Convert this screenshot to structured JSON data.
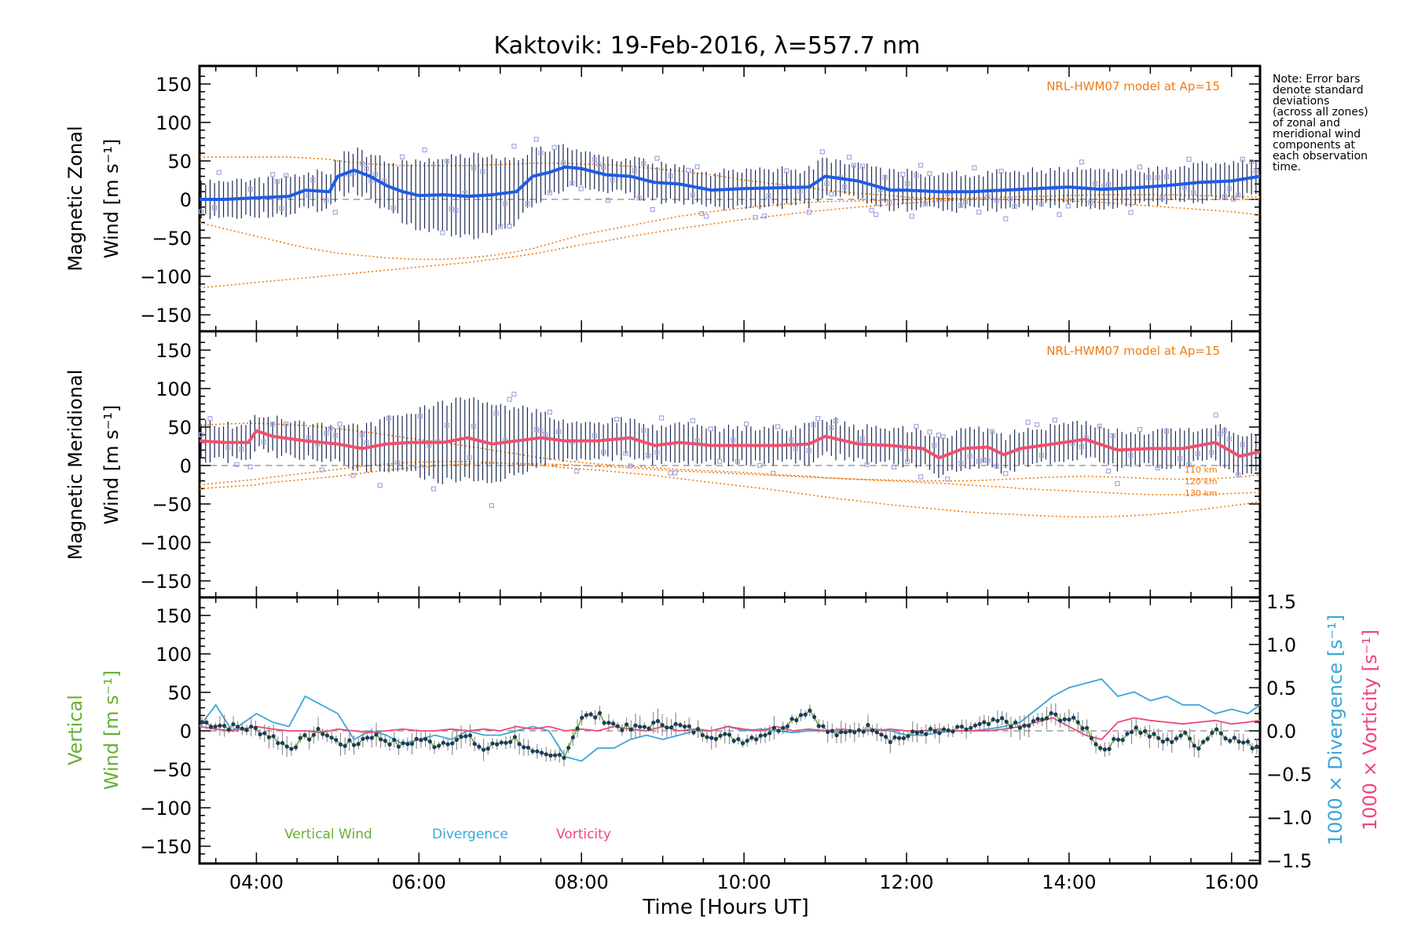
{
  "title": "Kaktovik: 19-Feb-2016, λ=557.7 nm",
  "xlabel": "Time [Hours UT]",
  "note": [
    "Note: Error bars",
    "denote standard",
    "deviations",
    "(across all zones)",
    "of zonal and",
    "meridional wind",
    "components at",
    "each observation",
    "time."
  ],
  "model_label": "NRL-HWM07 model at Ap=15",
  "alt_labels": [
    "110 km",
    "120 km",
    "130 km"
  ],
  "x_ticks": [
    "04:00",
    "06:00",
    "08:00",
    "10:00",
    "12:00",
    "14:00",
    "16:00"
  ],
  "y_ticks_wind": [
    "150",
    "100",
    "50",
    "0",
    "−50",
    "−100",
    "−150"
  ],
  "y_ticks_right": [
    "1.5",
    "1.0",
    "0.5",
    "0.0",
    "−0.5",
    "−1.0",
    "−1.5"
  ],
  "panels": {
    "zonal": {
      "ylabel1": "Magnetic Zonal",
      "ylabel2": "Wind [m s⁻¹]"
    },
    "meridional": {
      "ylabel1": "Magnetic Meridional",
      "ylabel2": "Wind [m s⁻¹]"
    },
    "vertical": {
      "ylabel1": "Vertical",
      "ylabel2": "Wind [m s⁻¹]",
      "right1": "1000 × Divergence [s⁻¹]",
      "right2": "1000 × Vorticity [s⁻¹]"
    }
  },
  "legend": {
    "vertical": "Vertical Wind",
    "divergence": "Divergence",
    "vorticity": "Vorticity"
  },
  "colors": {
    "zonal": "#1f5be6",
    "zonal_light": "#3ea0ea",
    "meridional": "#f0506e",
    "vertical": "#66b032",
    "divergence": "#3aa6d8",
    "vorticity": "#f0467a",
    "model": "#f07c12",
    "samples": "#a6a4e0",
    "errorbar": "#1c2a52"
  },
  "chart_data": [
    {
      "type": "line",
      "title": "Kaktovik: 19-Feb-2016, λ=557.7 nm",
      "xlabel": "Time [Hours UT]",
      "ylabel": "Magnetic Zonal Wind [m s⁻¹]",
      "xlim": [
        3.3,
        16.35
      ],
      "ylim": [
        -165,
        165
      ],
      "x": [
        3.3,
        3.6,
        4.0,
        4.4,
        4.6,
        4.9,
        5.0,
        5.2,
        5.4,
        5.6,
        5.8,
        6.0,
        6.3,
        6.6,
        6.9,
        7.2,
        7.4,
        7.6,
        7.8,
        8.0,
        8.3,
        8.6,
        8.9,
        9.2,
        9.6,
        10.0,
        10.4,
        10.8,
        11.0,
        11.4,
        11.8,
        12.0,
        12.4,
        12.8,
        13.2,
        13.6,
        14.0,
        14.4,
        14.8,
        15.2,
        15.6,
        16.0,
        16.35
      ],
      "series": [
        {
          "values": [
            0,
            0,
            2,
            4,
            12,
            10,
            30,
            38,
            30,
            18,
            10,
            5,
            6,
            4,
            6,
            10,
            30,
            35,
            42,
            40,
            32,
            30,
            22,
            20,
            12,
            14,
            15,
            16,
            30,
            24,
            12,
            12,
            10,
            10,
            12,
            14,
            16,
            13,
            15,
            18,
            22,
            24,
            30
          ]
        }
      ],
      "model": {
        "name": "NRL-HWM07 model at Ap=15",
        "curves": [
          {
            "label": "110 km",
            "values": [
              55,
              55,
              55,
              55,
              54,
              52,
              50,
              48,
              46,
              45,
              44,
              44,
              44,
              44,
              45,
              46,
              47,
              47,
              47,
              46,
              45,
              43,
              40,
              37,
              32,
              25,
              20,
              15,
              12,
              8,
              5,
              3,
              1,
              0,
              0,
              0,
              0,
              0,
              0,
              0,
              0,
              0,
              0
            ]
          },
          {
            "label": "120 km",
            "values": [
              -30,
              -38,
              -48,
              -58,
              -63,
              -68,
              -70,
              -72,
              -74,
              -76,
              -77,
              -78,
              -78,
              -76,
              -73,
              -68,
              -64,
              -58,
              -52,
              -46,
              -40,
              -34,
              -28,
              -22,
              -16,
              -11,
              -7,
              -4,
              -3,
              -2,
              -1,
              0,
              1,
              2,
              3,
              4,
              5,
              6,
              6,
              6,
              5,
              4,
              3
            ]
          },
          {
            "label": "130 km",
            "values": [
              -115,
              -112,
              -108,
              -104,
              -102,
              -99,
              -98,
              -96,
              -94,
              -92,
              -90,
              -88,
              -85,
              -82,
              -78,
              -74,
              -71,
              -67,
              -63,
              -59,
              -54,
              -48,
              -43,
              -38,
              -32,
              -26,
              -21,
              -16,
              -14,
              -10,
              -7,
              -5,
              -2,
              0,
              0,
              0,
              -2,
              -4,
              -7,
              -10,
              -13,
              -16,
              -20
            ]
          }
        ]
      }
    },
    {
      "type": "line",
      "ylabel": "Magnetic Meridional Wind [m s⁻¹]",
      "xlim": [
        3.3,
        16.35
      ],
      "ylim": [
        -165,
        165
      ],
      "x": [
        3.3,
        3.6,
        3.9,
        4.0,
        4.2,
        4.6,
        5.0,
        5.3,
        5.6,
        5.9,
        6.3,
        6.6,
        6.9,
        7.2,
        7.5,
        7.8,
        8.2,
        8.6,
        8.9,
        9.2,
        9.6,
        10.0,
        10.4,
        10.8,
        11.0,
        11.4,
        11.8,
        12.2,
        12.4,
        12.7,
        13.0,
        13.2,
        13.4,
        13.8,
        14.2,
        14.6,
        15.0,
        15.4,
        15.8,
        16.1,
        16.35
      ],
      "series": [
        {
          "values": [
            32,
            30,
            30,
            45,
            38,
            32,
            28,
            22,
            28,
            30,
            30,
            36,
            28,
            32,
            36,
            32,
            32,
            36,
            26,
            30,
            26,
            26,
            26,
            28,
            38,
            28,
            26,
            22,
            10,
            22,
            24,
            14,
            22,
            28,
            34,
            20,
            22,
            22,
            30,
            12,
            18
          ]
        }
      ],
      "model": {
        "name": "NRL-HWM07 model at Ap=15",
        "curves": [
          {
            "label": "110 km",
            "values": [
              52,
              54,
              55,
              55,
              54,
              52,
              48,
              44,
              40,
              35,
              30,
              25,
              20,
              15,
              10,
              6,
              2,
              -1,
              -3,
              -5,
              -7,
              -9,
              -12,
              -14,
              -16,
              -18,
              -19,
              -20,
              -20,
              -20,
              -19,
              -18,
              -17,
              -15,
              -14,
              -15,
              -17,
              -18,
              -17,
              -15,
              -12
            ]
          },
          {
            "label": "120 km",
            "values": [
              -25,
              -22,
              -19,
              -18,
              -15,
              -10,
              -5,
              -1,
              2,
              4,
              5,
              5,
              4,
              2,
              0,
              -3,
              -6,
              -10,
              -13,
              -17,
              -22,
              -27,
              -32,
              -38,
              -41,
              -46,
              -51,
              -55,
              -57,
              -60,
              -62,
              -63,
              -64,
              -66,
              -67,
              -66,
              -64,
              -60,
              -55,
              -51,
              -47
            ]
          },
          {
            "label": "130 km",
            "values": [
              -30,
              -28,
              -26,
              -25,
              -22,
              -18,
              -14,
              -10,
              -6,
              -3,
              0,
              2,
              3,
              3,
              2,
              1,
              -1,
              -3,
              -5,
              -7,
              -9,
              -11,
              -13,
              -15,
              -16,
              -18,
              -20,
              -22,
              -23,
              -25,
              -27,
              -28,
              -30,
              -32,
              -34,
              -36,
              -38,
              -38,
              -37,
              -36,
              -35
            ]
          }
        ]
      }
    },
    {
      "type": "line",
      "ylabel": "Vertical Wind [m s⁻¹]",
      "y2label": [
        "1000 × Divergence [s⁻¹]",
        "1000 × Vorticity [s⁻¹]"
      ],
      "xlim": [
        3.3,
        16.35
      ],
      "ylim": [
        -165,
        165
      ],
      "y2lim": [
        -1.6,
        1.6
      ],
      "x": [
        3.3,
        3.5,
        3.7,
        4.0,
        4.2,
        4.4,
        4.6,
        4.8,
        5.0,
        5.2,
        5.4,
        5.6,
        5.8,
        6.0,
        6.2,
        6.4,
        6.6,
        6.8,
        7.0,
        7.2,
        7.4,
        7.6,
        7.8,
        8.0,
        8.2,
        8.4,
        8.6,
        8.8,
        9.0,
        9.2,
        9.4,
        9.6,
        9.8,
        10.0,
        10.2,
        10.4,
        10.6,
        10.8,
        11.0,
        11.2,
        11.4,
        11.6,
        11.8,
        12.0,
        12.2,
        12.4,
        12.6,
        12.8,
        13.0,
        13.2,
        13.4,
        13.6,
        13.8,
        14.0,
        14.2,
        14.4,
        14.6,
        14.8,
        15.0,
        15.2,
        15.4,
        15.6,
        15.8,
        16.0,
        16.2,
        16.35
      ],
      "series": [
        {
          "name": "Vertical Wind",
          "axis": "left",
          "values": [
            12,
            8,
            5,
            2,
            -8,
            -22,
            -10,
            0,
            -15,
            -18,
            -5,
            -12,
            -20,
            -10,
            -18,
            -12,
            -8,
            -25,
            -15,
            -10,
            -30,
            -35,
            -30,
            18,
            20,
            8,
            2,
            6,
            10,
            6,
            0,
            -5,
            -8,
            -12,
            -5,
            2,
            15,
            28,
            0,
            -6,
            2,
            5,
            -10,
            -8,
            0,
            -3,
            0,
            4,
            8,
            14,
            3,
            12,
            20,
            15,
            5,
            -25,
            -12,
            4,
            -6,
            -15,
            -4,
            -20,
            3,
            -10,
            -18,
            -20
          ]
        },
        {
          "name": "Divergence",
          "axis": "right",
          "values": [
            0.05,
            0.3,
            0.0,
            0.2,
            0.1,
            0.05,
            0.4,
            0.3,
            0.2,
            -0.1,
            0.0,
            -0.05,
            -0.15,
            -0.1,
            -0.05,
            -0.1,
            0.0,
            -0.05,
            -0.05,
            0.0,
            0.05,
            0.0,
            -0.3,
            -0.35,
            -0.2,
            -0.2,
            -0.1,
            -0.05,
            -0.1,
            -0.05,
            0.0,
            0.0,
            0.05,
            0.0,
            0.02,
            0.0,
            -0.02,
            0.0,
            0.0,
            -0.02,
            0.0,
            0.02,
            0.0,
            -0.05,
            -0.05,
            -0.02,
            0.0,
            0.0,
            0.02,
            0.05,
            0.1,
            0.25,
            0.4,
            0.5,
            0.55,
            0.6,
            0.4,
            0.45,
            0.35,
            0.4,
            0.3,
            0.3,
            0.2,
            0.25,
            0.2,
            0.3
          ]
        },
        {
          "name": "Vorticity",
          "axis": "right",
          "values": [
            0.05,
            0.02,
            0.0,
            0.05,
            0.02,
            0.0,
            0.0,
            -0.02,
            0.02,
            0.0,
            -0.02,
            0.0,
            0.02,
            0.0,
            0.0,
            0.02,
            0.0,
            0.02,
            0.0,
            0.05,
            0.02,
            0.05,
            0.0,
            0.02,
            0.0,
            0.05,
            0.02,
            0.0,
            0.05,
            0.0,
            0.02,
            0.0,
            0.05,
            0.02,
            0.0,
            0.05,
            0.0,
            0.02,
            0.0,
            0.02,
            0.0,
            0.0,
            0.02,
            0.0,
            0.0,
            0.02,
            0.0,
            0.0,
            0.0,
            0.02,
            0.05,
            0.1,
            0.15,
            0.05,
            -0.05,
            -0.1,
            0.1,
            0.15,
            0.12,
            0.1,
            0.08,
            0.1,
            0.12,
            0.08,
            0.1,
            0.12
          ]
        }
      ]
    }
  ]
}
